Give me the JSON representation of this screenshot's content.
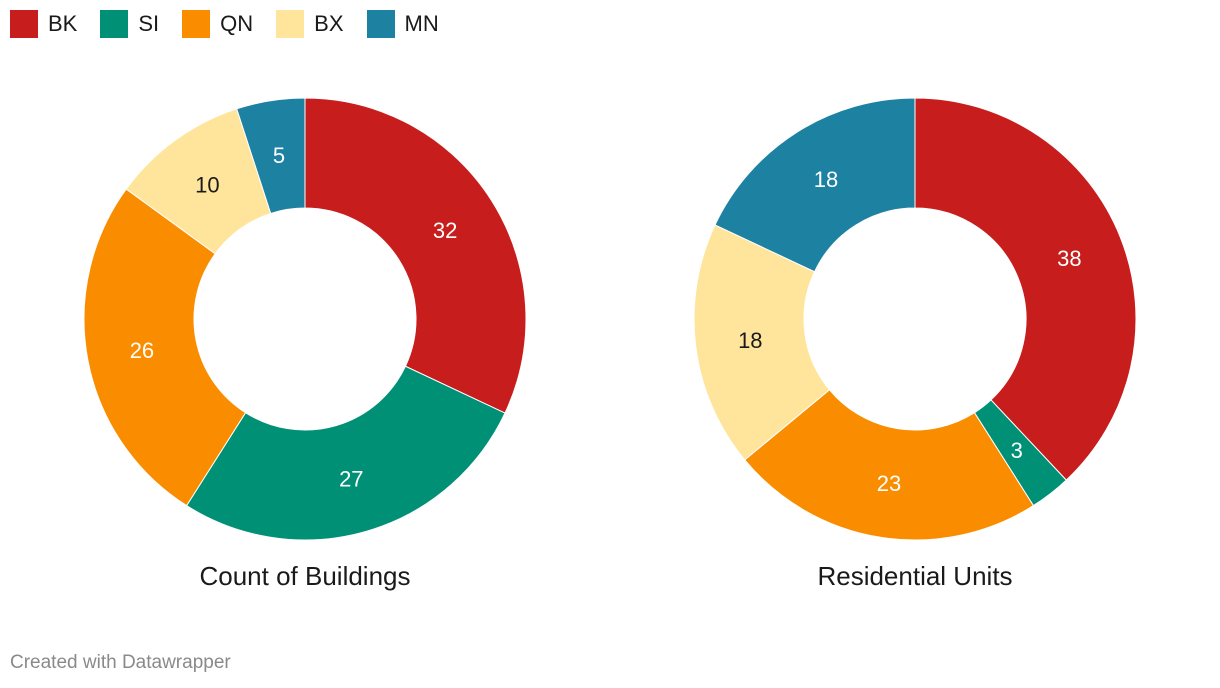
{
  "colors": {
    "BK": "#c71e1d",
    "SI": "#009076",
    "QN": "#fa8c00",
    "BX": "#ffe59c",
    "MN": "#1d81a2"
  },
  "legend": [
    {
      "label": "BK",
      "color": "#c71e1d"
    },
    {
      "label": "SI",
      "color": "#009076"
    },
    {
      "label": "QN",
      "color": "#fa8c00"
    },
    {
      "label": "BX",
      "color": "#ffe59c"
    },
    {
      "label": "MN",
      "color": "#1d81a2"
    }
  ],
  "chart_data": [
    {
      "type": "pie",
      "variant": "donut",
      "title": "Count of Buildings",
      "categories": [
        "BK",
        "SI",
        "QN",
        "BX",
        "MN"
      ],
      "values": [
        32,
        27,
        26,
        10,
        5
      ]
    },
    {
      "type": "pie",
      "variant": "donut",
      "title": "Residential Units",
      "categories": [
        "BK",
        "SI",
        "QN",
        "BX",
        "MN"
      ],
      "values": [
        38,
        3,
        23,
        18,
        18
      ]
    }
  ],
  "footer": {
    "credit": "Created with Datawrapper"
  }
}
